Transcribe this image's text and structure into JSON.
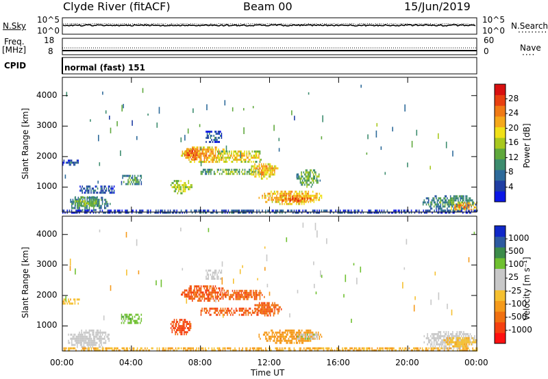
{
  "header": {
    "station": "Clyde River (fitACF)",
    "beam": "Beam 00",
    "date": "15/Jun/2019"
  },
  "top_panels": {
    "nsky_label": "N.Sky",
    "nsearch_label": "N.Search",
    "noise_ticks_left": [
      "10^5",
      "10^0"
    ],
    "noise_ticks_right": [
      "10^5",
      "10^0"
    ],
    "freq_label": "Freq.",
    "freq_unit": "[MHz]",
    "freq_ticks": [
      "18",
      "8"
    ],
    "nave_label": "Nave",
    "nave_ticks": [
      "60",
      "0"
    ],
    "cpid_label": "CPID",
    "cpid_value": "normal (fast) 151"
  },
  "colors": {
    "power_scale": [
      "#0b17e6",
      "#1f3ea3",
      "#2d6a9a",
      "#3c8c6e",
      "#5fa83c",
      "#a8c81e",
      "#f0e018",
      "#f5a81a",
      "#f07a15",
      "#e84010",
      "#d81010"
    ],
    "velocity_scale": [
      "#ff1010",
      "#f54010",
      "#f07010",
      "#f59a1a",
      "#f5c030",
      "#c8c8c8",
      "#c8c8c8",
      "#6fc030",
      "#3c8c4a",
      "#2d5aa0",
      "#1028c8"
    ]
  },
  "chart_data": [
    {
      "type": "heatmap",
      "ylabel": "Slant Range [km]",
      "xlabel": "",
      "x_ticks": [
        "00:00",
        "04:00",
        "08:00",
        "12:00",
        "16:00",
        "20:00",
        "00:00"
      ],
      "y_ticks": [
        "1000",
        "2000",
        "3000",
        "4000"
      ],
      "xlim": [
        0,
        24
      ],
      "ylim": [
        180,
        4600
      ],
      "colorbar": {
        "label": "Power [dB]",
        "ticks": [
          "4",
          "8",
          "12",
          "16",
          "20",
          "24",
          "28"
        ],
        "range": [
          0,
          30
        ]
      },
      "regions": [
        {
          "t0": 0.2,
          "t1": 2.8,
          "r0": 250,
          "r1": 750,
          "v": 10
        },
        {
          "t0": 0.6,
          "t1": 2.0,
          "r0": 400,
          "r1": 700,
          "v": 15
        },
        {
          "t0": 0.0,
          "t1": 24.0,
          "r0": 190,
          "r1": 260,
          "v": 8
        },
        {
          "t0": 0.0,
          "t1": 1.0,
          "r0": 1700,
          "r1": 1900,
          "v": 6
        },
        {
          "t0": 1.0,
          "t1": 3.0,
          "r0": 800,
          "r1": 1050,
          "v": 7
        },
        {
          "t0": 3.4,
          "t1": 4.6,
          "r0": 1100,
          "r1": 1400,
          "v": 12
        },
        {
          "t0": 6.2,
          "t1": 7.5,
          "r0": 800,
          "r1": 1300,
          "v": 16
        },
        {
          "t0": 6.8,
          "t1": 9.6,
          "r0": 1800,
          "r1": 2400,
          "v": 22
        },
        {
          "t0": 7.0,
          "t1": 8.0,
          "r0": 1900,
          "r1": 2350,
          "v": 26
        },
        {
          "t0": 8.0,
          "t1": 11.5,
          "r0": 1400,
          "r1": 1600,
          "v": 14
        },
        {
          "t0": 9.0,
          "t1": 11.5,
          "r0": 1850,
          "r1": 2200,
          "v": 20
        },
        {
          "t0": 10.8,
          "t1": 12.5,
          "r0": 1300,
          "r1": 1850,
          "v": 21
        },
        {
          "t0": 11.3,
          "t1": 15.2,
          "r0": 450,
          "r1": 950,
          "v": 22
        },
        {
          "t0": 12.6,
          "t1": 14.5,
          "r0": 520,
          "r1": 720,
          "v": 27
        },
        {
          "t0": 13.5,
          "t1": 15.0,
          "r0": 1000,
          "r1": 1650,
          "v": 13
        },
        {
          "t0": 8.3,
          "t1": 9.2,
          "r0": 2500,
          "r1": 2850,
          "v": 7
        },
        {
          "t0": 20.8,
          "t1": 24.0,
          "r0": 250,
          "r1": 800,
          "v": 10
        },
        {
          "t0": 22.5,
          "t1": 24.0,
          "r0": 250,
          "r1": 500,
          "v": 24
        }
      ]
    },
    {
      "type": "heatmap",
      "ylabel": "Slant Range [km]",
      "xlabel": "Time UT",
      "x_ticks": [
        "00:00",
        "04:00",
        "08:00",
        "12:00",
        "16:00",
        "20:00",
        "00:00"
      ],
      "y_ticks": [
        "1000",
        "2000",
        "3000",
        "4000"
      ],
      "xlim": [
        0,
        24
      ],
      "ylim": [
        180,
        4600
      ],
      "colorbar": {
        "label": "Velocity [m s⁻¹]",
        "ticks": [
          "-1000",
          "-500",
          "-100",
          "-25",
          "25",
          "100",
          "500",
          "1000"
        ],
        "range": [
          -1250,
          1250
        ]
      },
      "regions": [
        {
          "t0": 0.2,
          "t1": 2.8,
          "r0": 250,
          "r1": 950,
          "v": 0
        },
        {
          "t0": 0.0,
          "t1": 1.0,
          "r0": 1700,
          "r1": 1900,
          "v": -80
        },
        {
          "t0": 3.4,
          "t1": 4.6,
          "r0": 1100,
          "r1": 1400,
          "v": 150
        },
        {
          "t0": 6.2,
          "t1": 7.5,
          "r0": 700,
          "r1": 1300,
          "v": -600
        },
        {
          "t0": 6.8,
          "t1": 9.6,
          "r0": 1800,
          "r1": 2400,
          "v": -500
        },
        {
          "t0": 8.0,
          "t1": 11.5,
          "r0": 1350,
          "r1": 1600,
          "v": -500
        },
        {
          "t0": 9.0,
          "t1": 11.8,
          "r0": 1850,
          "r1": 2250,
          "v": -450
        },
        {
          "t0": 11.0,
          "t1": 12.7,
          "r0": 1350,
          "r1": 1850,
          "v": -450
        },
        {
          "t0": 11.3,
          "t1": 15.0,
          "r0": 450,
          "r1": 950,
          "v": -150
        },
        {
          "t0": 13.6,
          "t1": 14.8,
          "r0": 550,
          "r1": 750,
          "v": 80
        },
        {
          "t0": 0.0,
          "t1": 24.0,
          "r0": 190,
          "r1": 300,
          "v": -100
        },
        {
          "t0": 8.3,
          "t1": 9.2,
          "r0": 2550,
          "r1": 2850,
          "v": 0
        },
        {
          "t0": 20.8,
          "t1": 24.0,
          "r0": 250,
          "r1": 900,
          "v": 0
        },
        {
          "t0": 22.0,
          "t1": 24.0,
          "r0": 300,
          "r1": 700,
          "v": -80
        }
      ]
    }
  ]
}
